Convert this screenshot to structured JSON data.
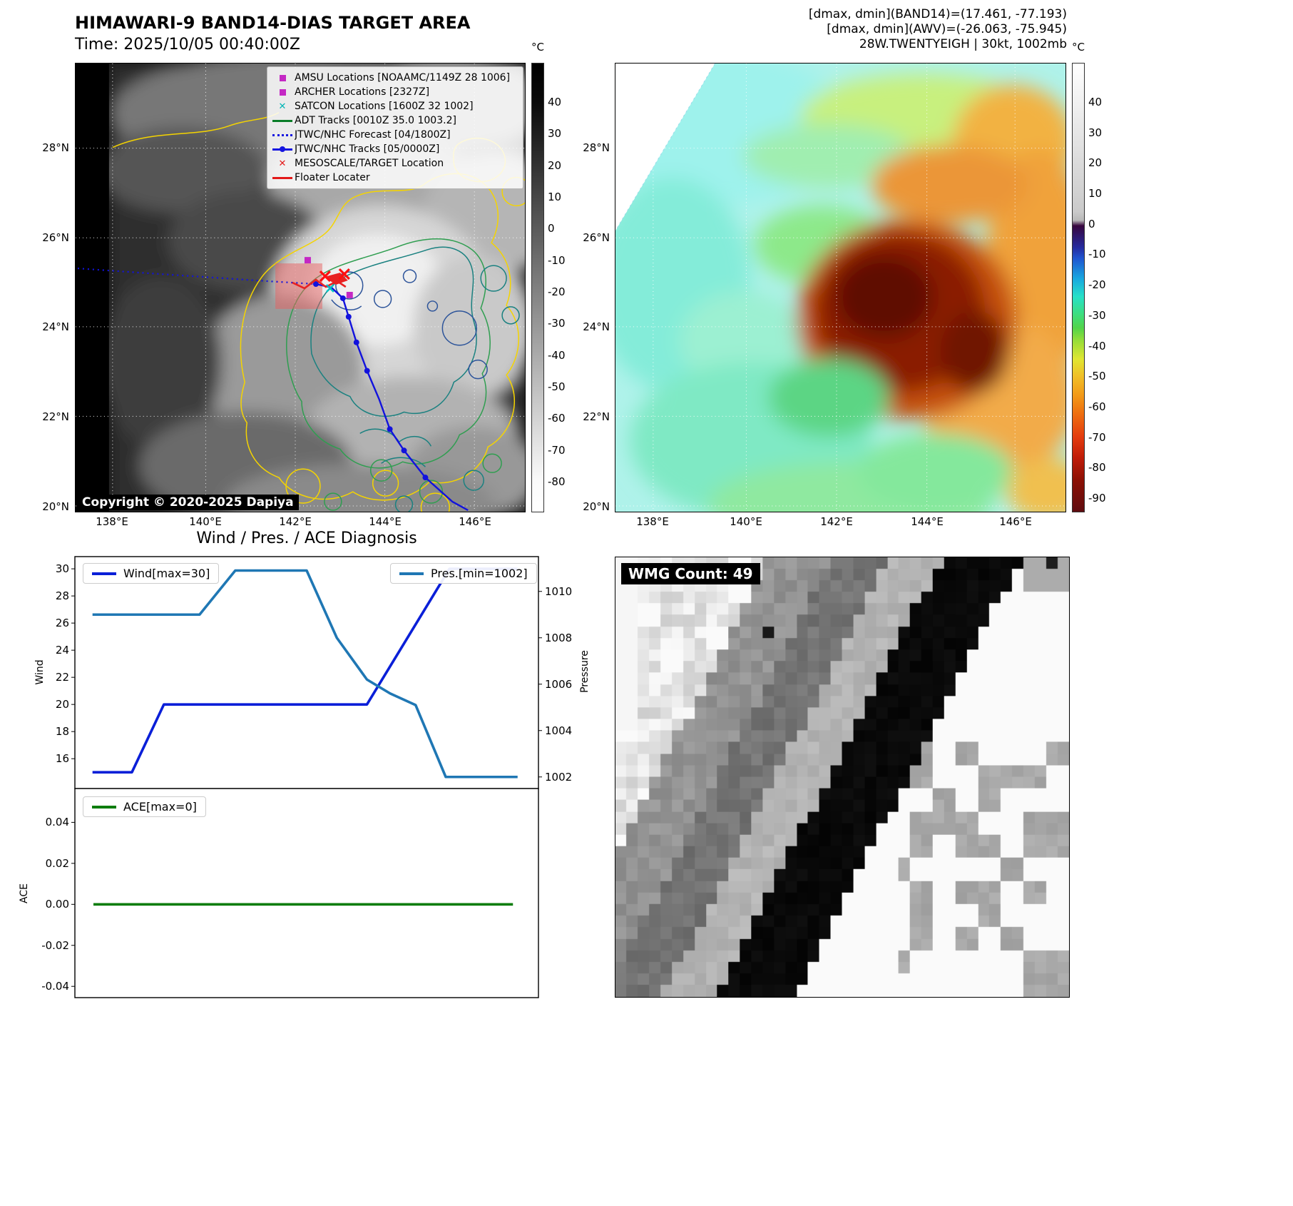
{
  "panel_tl": {
    "title": "HIMAWARI-9 BAND14-DIAS TARGET AREA",
    "subtitle": "Time: 2025/10/05 00:40:00Z",
    "copyright": "Copyright © 2020-2025 Dapiya",
    "colorbar_unit": "°C",
    "colorbar_ticks": [
      "40",
      "30",
      "20",
      "10",
      "0",
      "-10",
      "-20",
      "-30",
      "-40",
      "-50",
      "-60",
      "-70",
      "-80"
    ],
    "x_ticks": [
      "138°E",
      "140°E",
      "142°E",
      "144°E",
      "146°E"
    ],
    "y_ticks": [
      "28°N",
      "26°N",
      "24°N",
      "22°N",
      "20°N"
    ],
    "legend": [
      {
        "label": "AMSU Locations [NOAAMC/1149Z 28 1006]",
        "marker": "magenta-square"
      },
      {
        "label": "ARCHER Locations [2327Z]",
        "marker": "magenta-square"
      },
      {
        "label": "SATCON Locations [1600Z 32 1002]",
        "marker": "cyan-x"
      },
      {
        "label": "ADT Tracks [0010Z 35.0 1003.2]",
        "marker": "green-line"
      },
      {
        "label": "JTWC/NHC Forecast [04/1800Z]",
        "marker": "blue-dotted"
      },
      {
        "label": "JTWC/NHC Tracks [05/0000Z]",
        "marker": "blue-line-dot"
      },
      {
        "label": "MESOSCALE/TARGET Location",
        "marker": "red-x"
      },
      {
        "label": "Floater Locater",
        "marker": "red-line"
      }
    ]
  },
  "panel_tr": {
    "header_line1": "[dmax, dmin](BAND14)=(17.461, -77.193)",
    "header_line2": "[dmax, dmin](AWV)=(-26.063, -75.945)",
    "header_line3": "28W.TWENTYEIGH | 30kt, 1002mb",
    "colorbar_unit": "°C",
    "colorbar_ticks": [
      "40",
      "30",
      "20",
      "10",
      "0",
      "-10",
      "-20",
      "-30",
      "-40",
      "-50",
      "-60",
      "-70",
      "-80",
      "-90"
    ],
    "x_ticks": [
      "138°E",
      "140°E",
      "142°E",
      "144°E",
      "146°E"
    ],
    "y_ticks": [
      "28°N",
      "26°N",
      "24°N",
      "22°N",
      "20°N"
    ]
  },
  "panel_bl": {
    "title": "Wind / Pres. / ACE Diagnosis"
  },
  "panel_br": {
    "label": "WMG Count: 49"
  },
  "chart_data": [
    {
      "type": "line",
      "title": "Wind / Pres. / ACE Diagnosis (upper panel: wind and pressure vs normalized time)",
      "x_axis": {
        "label": "",
        "range": [
          0,
          1
        ],
        "note": "normalized time, no x tick labels shown"
      },
      "left_axis": {
        "label": "Wind",
        "range": [
          13.8,
          30.9
        ],
        "ticks": [
          16,
          18,
          20,
          22,
          24,
          26,
          28,
          30
        ],
        "tick_labels": [
          "16",
          "18",
          "20",
          "22",
          "24",
          "26",
          "28",
          "30"
        ]
      },
      "right_axis": {
        "label": "Pressure",
        "range": [
          1001.5,
          1011.5
        ],
        "ticks": [
          1002,
          1004,
          1006,
          1008,
          1010
        ],
        "tick_labels": [
          "1002",
          "1004",
          "1006",
          "1008",
          "1010"
        ]
      },
      "series": [
        {
          "name": "Wind[max=30]",
          "axis": "left",
          "color": "#0a1fd8",
          "x": [
            0.038,
            0.123,
            0.192,
            0.63,
            0.808,
            0.955
          ],
          "y": [
            15,
            15,
            20,
            20,
            30,
            30
          ]
        },
        {
          "name": "Pres.[min=1002]",
          "axis": "right",
          "color": "#1f77b4",
          "x": [
            0.038,
            0.269,
            0.346,
            0.5,
            0.565,
            0.63,
            0.68,
            0.735,
            0.8,
            0.955
          ],
          "y": [
            1009,
            1009,
            1010.9,
            1010.9,
            1008,
            1006.2,
            1005.6,
            1005.1,
            1002,
            1002
          ]
        }
      ],
      "legend_position": "top-left (Wind) and top-right (Pres.)",
      "grid": false
    },
    {
      "type": "line",
      "title": "ACE (lower panel)",
      "x_axis": {
        "label": "",
        "range": [
          0,
          1
        ]
      },
      "left_axis": {
        "label": "ACE",
        "range": [
          -0.0455,
          0.0565
        ],
        "ticks": [
          0.04,
          0.02,
          0,
          -0.02,
          -0.04
        ],
        "tick_labels": [
          "0.04",
          "0.02",
          "0.00",
          "-0.02",
          "-0.04"
        ]
      },
      "series": [
        {
          "name": "ACE[max=0]",
          "axis": "left",
          "color": "#0e7d0e",
          "x": [
            0.04,
            0.945
          ],
          "y": [
            0,
            0
          ]
        }
      ],
      "legend_position": "top-left",
      "grid": false
    }
  ]
}
